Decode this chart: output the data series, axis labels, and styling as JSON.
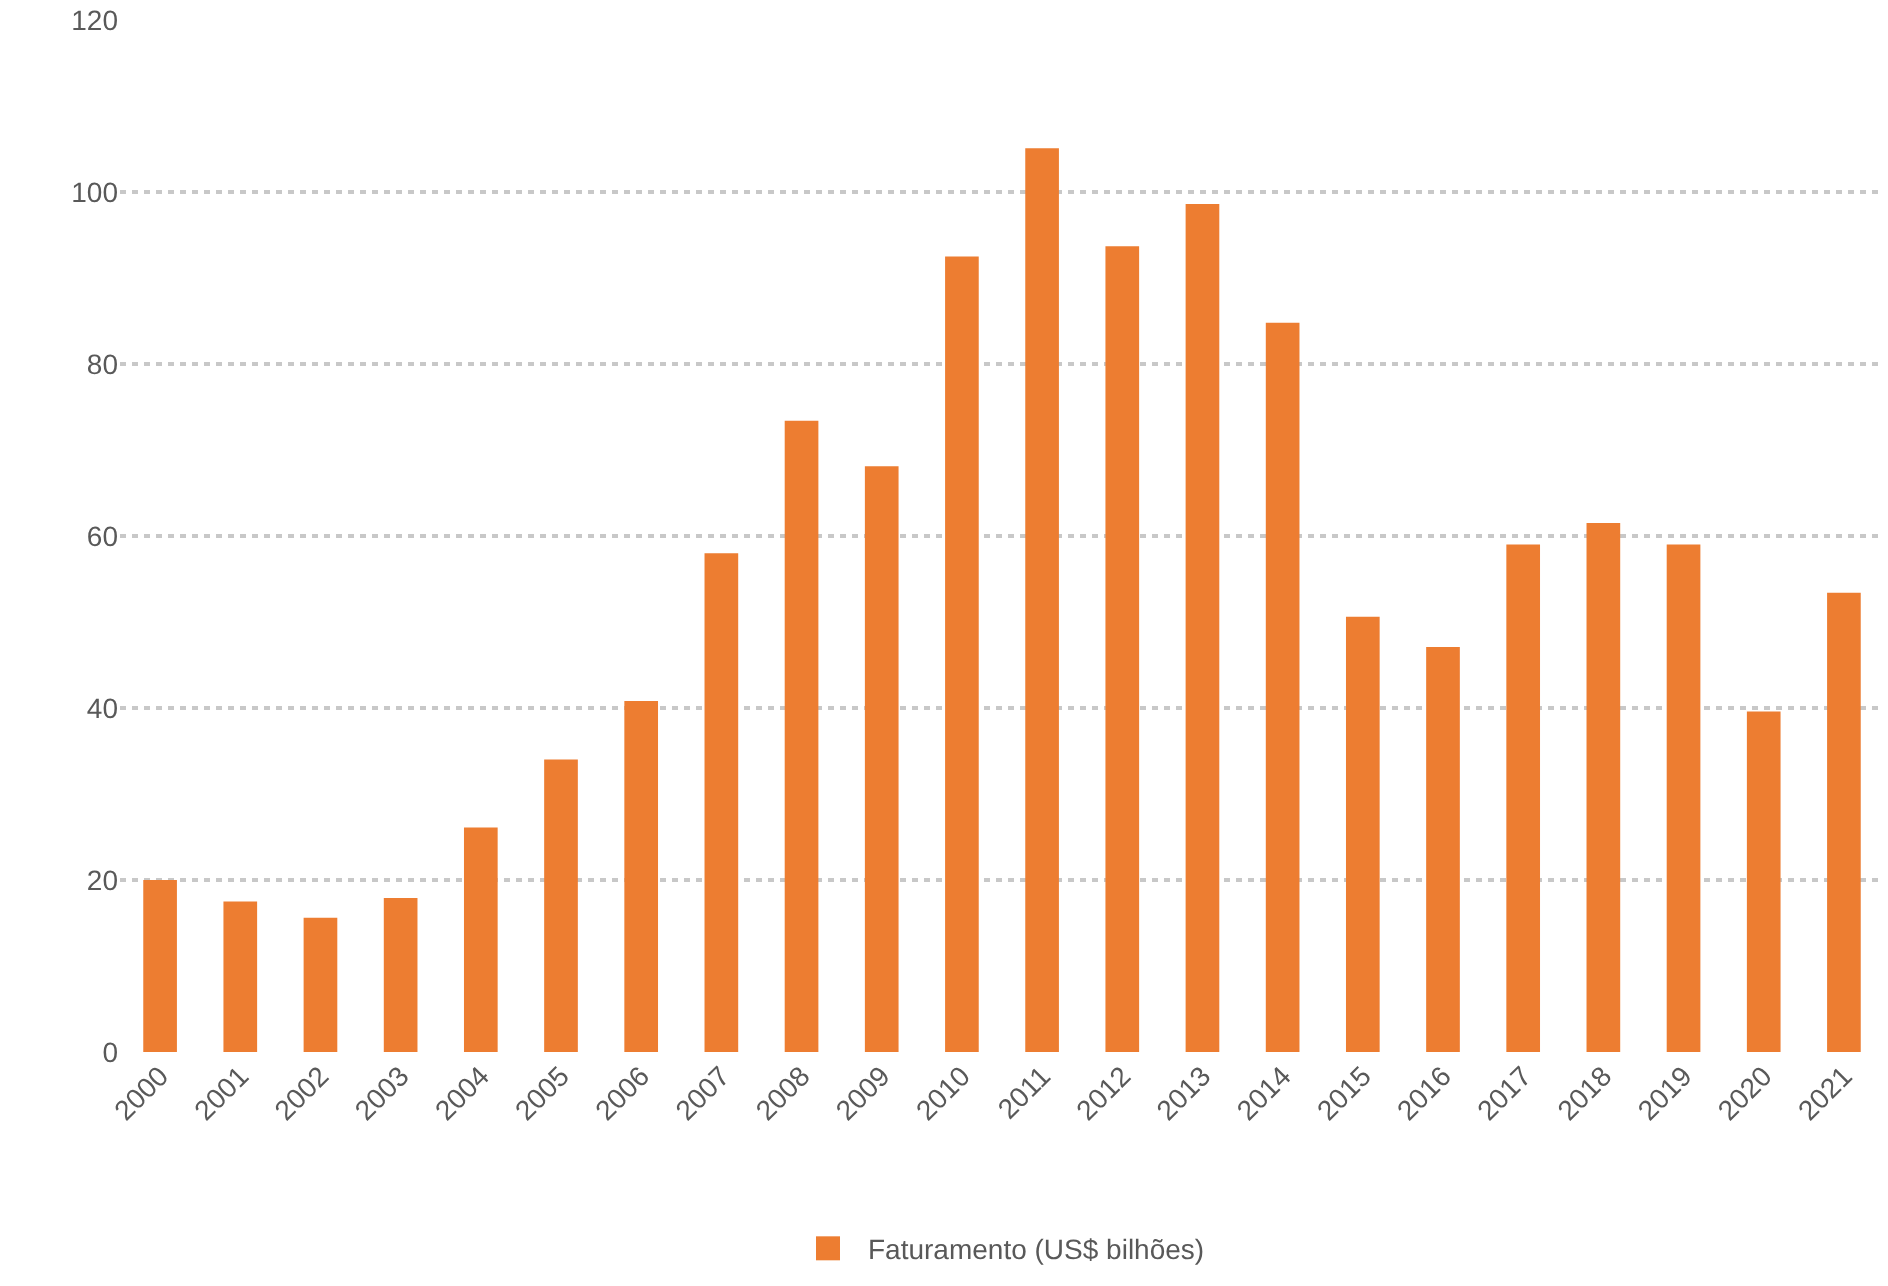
{
  "chart_data": {
    "type": "bar",
    "categories": [
      "2000",
      "2001",
      "2002",
      "2003",
      "2004",
      "2005",
      "2006",
      "2007",
      "2008",
      "2009",
      "2010",
      "2011",
      "2012",
      "2013",
      "2014",
      "2015",
      "2016",
      "2017",
      "2018",
      "2019",
      "2020",
      "2021"
    ],
    "series": [
      {
        "name": "Faturamento (US$ bilhões)",
        "color": "#ed7d31",
        "values": [
          20.0,
          17.5,
          15.6,
          17.9,
          26.1,
          34.0,
          40.8,
          58.0,
          73.4,
          68.1,
          92.5,
          105.1,
          93.7,
          98.6,
          84.8,
          50.6,
          47.1,
          59.0,
          61.5,
          59.0,
          39.6,
          53.4
        ]
      }
    ],
    "ylim": [
      0,
      120
    ],
    "yticks": [
      0,
      20,
      40,
      60,
      80,
      100,
      120
    ],
    "grid": "y",
    "legend": "bottom"
  }
}
